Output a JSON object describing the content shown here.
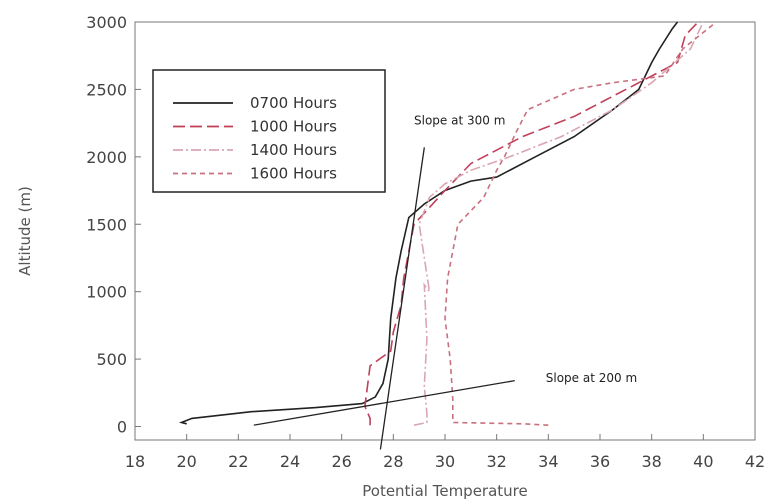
{
  "chart_data": {
    "type": "line",
    "title": "",
    "xlabel": "Potential Temperature",
    "ylabel": "Altitude (m)",
    "xlim": [
      18,
      42
    ],
    "ylim": [
      -100,
      3000
    ],
    "xticks": [
      "18",
      "20",
      "22",
      "24",
      "26",
      "28",
      "30",
      "32",
      "34",
      "36",
      "38",
      "40",
      "42"
    ],
    "yticks": [
      "0",
      "500",
      "1000",
      "1500",
      "2000",
      "2500",
      "3000"
    ],
    "grid": false,
    "legend_position": "top-left",
    "series": [
      {
        "name": "0700 Hours",
        "color": "#222222",
        "dash": "solid",
        "points": [
          [
            20.0,
            20
          ],
          [
            19.8,
            30
          ],
          [
            20.2,
            60
          ],
          [
            22.5,
            110
          ],
          [
            25.0,
            140
          ],
          [
            26.8,
            170
          ],
          [
            27.3,
            220
          ],
          [
            27.6,
            320
          ],
          [
            27.8,
            500
          ],
          [
            27.9,
            800
          ],
          [
            28.1,
            1100
          ],
          [
            28.3,
            1300
          ],
          [
            28.6,
            1550
          ],
          [
            29.2,
            1650
          ],
          [
            30.0,
            1750
          ],
          [
            31.0,
            1820
          ],
          [
            32.0,
            1850
          ],
          [
            33.5,
            2000
          ],
          [
            35.0,
            2150
          ],
          [
            36.5,
            2350
          ],
          [
            37.5,
            2500
          ],
          [
            38.0,
            2700
          ],
          [
            38.3,
            2800
          ],
          [
            38.8,
            2950
          ],
          [
            39.0,
            3000
          ]
        ]
      },
      {
        "name": "1000 Hours",
        "color": "#c0405a",
        "dash": "12,5",
        "points": [
          [
            27.1,
            10
          ],
          [
            27.1,
            60
          ],
          [
            26.9,
            150
          ],
          [
            27.1,
            450
          ],
          [
            27.9,
            560
          ],
          [
            28.0,
            700
          ],
          [
            28.3,
            900
          ],
          [
            28.4,
            1100
          ],
          [
            28.8,
            1500
          ],
          [
            30.0,
            1750
          ],
          [
            31.0,
            1950
          ],
          [
            31.5,
            2000
          ],
          [
            33.0,
            2150
          ],
          [
            35.0,
            2300
          ],
          [
            37.5,
            2550
          ],
          [
            39.0,
            2700
          ],
          [
            39.3,
            2900
          ],
          [
            39.8,
            3000
          ]
        ]
      },
      {
        "name": "1400 Hours",
        "color": "#d9a6b3",
        "dash": "10,3,2,3",
        "points": [
          [
            28.8,
            10
          ],
          [
            29.3,
            30
          ],
          [
            29.3,
            100
          ],
          [
            29.2,
            300
          ],
          [
            29.3,
            650
          ],
          [
            29.2,
            1050
          ],
          [
            29.4,
            1000
          ],
          [
            29.0,
            1500
          ],
          [
            29.4,
            1700
          ],
          [
            30.0,
            1800
          ],
          [
            31.0,
            1900
          ],
          [
            32.5,
            2000
          ],
          [
            34.5,
            2150
          ],
          [
            36.5,
            2350
          ],
          [
            38.0,
            2550
          ],
          [
            39.5,
            2800
          ],
          [
            40.0,
            3000
          ]
        ]
      },
      {
        "name": "1600 Hours",
        "color": "#c8707e",
        "dash": "5,4",
        "points": [
          [
            34.0,
            10
          ],
          [
            33.0,
            20
          ],
          [
            30.3,
            30
          ],
          [
            30.3,
            200
          ],
          [
            30.2,
            500
          ],
          [
            30.0,
            800
          ],
          [
            30.1,
            1100
          ],
          [
            30.5,
            1500
          ],
          [
            31.5,
            1700
          ],
          [
            32.0,
            1900
          ],
          [
            32.3,
            2000
          ],
          [
            32.8,
            2200
          ],
          [
            33.2,
            2350
          ],
          [
            35.0,
            2500
          ],
          [
            36.5,
            2550
          ],
          [
            38.5,
            2600
          ],
          [
            39.2,
            2800
          ],
          [
            40.5,
            3000
          ]
        ]
      }
    ],
    "annotations": [
      {
        "text": "Slope at 300 m",
        "x": 28.8,
        "y": 2240,
        "line": [
          [
            27.5,
            -170
          ],
          [
            29.2,
            2070
          ]
        ]
      },
      {
        "text": "Slope at 200 m",
        "x": 33.9,
        "y": 330,
        "line": [
          [
            22.6,
            10
          ],
          [
            32.7,
            340
          ]
        ]
      }
    ]
  }
}
